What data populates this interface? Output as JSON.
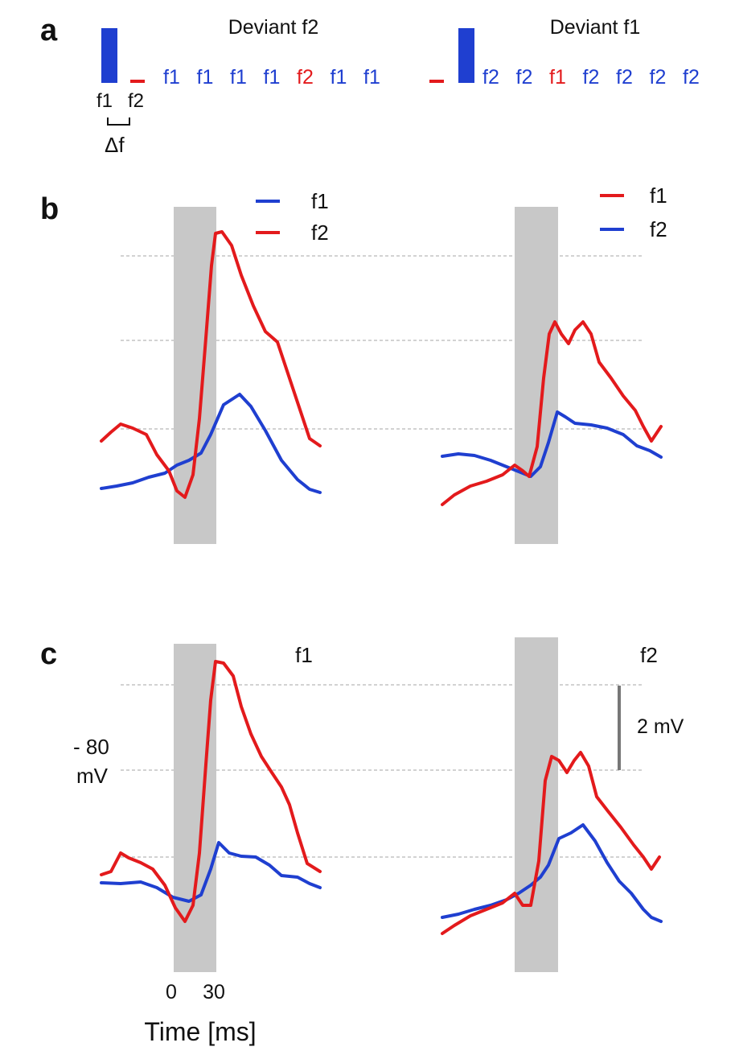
{
  "colors": {
    "blue": "#1f3fd0",
    "red": "#e31a1c",
    "stim_shade": "#c8c8c8",
    "grid": "#b8b8b8",
    "scale_bar": "#777777"
  },
  "panel_a": {
    "letter": "a",
    "left": {
      "title": "Deviant f2",
      "bar_labels": [
        "f1",
        "f2"
      ],
      "delta_label": "Δf",
      "sequence": [
        {
          "t": "f1",
          "c": "blue"
        },
        {
          "t": "f1",
          "c": "blue"
        },
        {
          "t": "f1",
          "c": "blue"
        },
        {
          "t": "f1",
          "c": "blue"
        },
        {
          "t": "f2",
          "c": "red"
        },
        {
          "t": "f1",
          "c": "blue"
        },
        {
          "t": "f1",
          "c": "blue"
        }
      ]
    },
    "right": {
      "title": "Deviant f1",
      "sequence": [
        {
          "t": "f2",
          "c": "blue"
        },
        {
          "t": "f2",
          "c": "blue"
        },
        {
          "t": "f1",
          "c": "red"
        },
        {
          "t": "f2",
          "c": "blue"
        },
        {
          "t": "f2",
          "c": "blue"
        },
        {
          "t": "f2",
          "c": "blue"
        },
        {
          "t": "f2",
          "c": "blue"
        }
      ]
    }
  },
  "panel_b": {
    "letter": "b",
    "left_legend": [
      {
        "label": "f1",
        "color": "blue"
      },
      {
        "label": "f2",
        "color": "red"
      }
    ],
    "right_legend": [
      {
        "label": "f1",
        "color": "red"
      },
      {
        "label": "f2",
        "color": "blue"
      }
    ]
  },
  "panel_c": {
    "letter": "c",
    "left_title": "f1",
    "right_title": "f2",
    "y_ref_value": "- 80",
    "y_ref_unit": "mV",
    "scale_bar_label": "2 mV"
  },
  "x_axis": {
    "tick_labels": [
      "0",
      "30"
    ],
    "label": "Time [ms]"
  }
}
